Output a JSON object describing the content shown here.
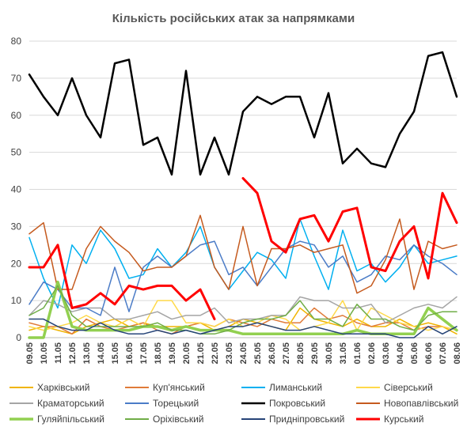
{
  "chart_data": {
    "type": "line",
    "title": "Кількість російських атак за напрямками",
    "xlabel": "",
    "ylabel": "",
    "ylim": [
      0,
      80
    ],
    "yticks": [
      0,
      10,
      20,
      30,
      40,
      50,
      60,
      70,
      80
    ],
    "grid": true,
    "legend_position": "bottom",
    "x": [
      "09.05",
      "10.05",
      "11.05",
      "12.05",
      "13.05",
      "14.05",
      "15.05",
      "16.05",
      "17.05",
      "18.05",
      "19.05",
      "20.05",
      "21.05",
      "22.05",
      "23.05",
      "24.05",
      "25.05",
      "26.05",
      "27.05",
      "28.05",
      "29.05",
      "30.05",
      "31.05",
      "01.06",
      "02.06",
      "03.06",
      "04.06",
      "05.06",
      "06.06",
      "07.06",
      "08.06"
    ],
    "series": [
      {
        "name": "Харківський",
        "color": "#f0b400",
        "width": 1.5,
        "values": [
          2,
          3,
          2,
          1,
          3,
          4,
          5,
          3,
          4,
          3,
          3,
          3,
          4,
          2,
          3,
          5,
          4,
          3,
          2,
          8,
          5,
          4,
          3,
          5,
          3,
          3,
          5,
          3,
          4,
          3,
          1
        ]
      },
      {
        "name": "Куп'янський",
        "color": "#e07b39",
        "width": 1.5,
        "values": [
          4,
          3,
          3,
          1,
          5,
          3,
          2,
          3,
          4,
          2,
          1,
          3,
          4,
          3,
          5,
          4,
          3,
          5,
          4,
          4,
          8,
          5,
          6,
          4,
          3,
          4,
          4,
          2,
          3,
          3,
          2
        ]
      },
      {
        "name": "Лиманський",
        "color": "#00b0f0",
        "width": 1.5,
        "values": [
          27,
          16,
          8,
          25,
          20,
          29,
          24,
          16,
          17,
          24,
          19,
          23,
          30,
          19,
          13,
          18,
          23,
          21,
          16,
          32,
          22,
          13,
          29,
          18,
          20,
          15,
          19,
          25,
          20,
          21,
          22
        ]
      },
      {
        "name": "Сіверський",
        "color": "#ffd94a",
        "width": 1.5,
        "values": [
          3,
          2,
          3,
          4,
          6,
          4,
          3,
          5,
          3,
          10,
          10,
          4,
          4,
          3,
          5,
          3,
          4,
          6,
          5,
          2,
          3,
          4,
          10,
          2,
          8,
          6,
          4,
          3,
          2,
          3,
          2
        ]
      },
      {
        "name": "Краматорський",
        "color": "#a5a5a5",
        "width": 1.5,
        "values": [
          6,
          10,
          9,
          7,
          8,
          8,
          5,
          5,
          6,
          7,
          5,
          6,
          6,
          8,
          4,
          5,
          5,
          6,
          6,
          11,
          10,
          10,
          8,
          8,
          9,
          4,
          6,
          8,
          9,
          8,
          11
        ]
      },
      {
        "name": "Торецький",
        "color": "#4b7cc7",
        "width": 1.5,
        "values": [
          9,
          15,
          13,
          8,
          8,
          6,
          19,
          7,
          19,
          22,
          19,
          22,
          25,
          26,
          17,
          19,
          14,
          19,
          24,
          26,
          25,
          19,
          22,
          15,
          17,
          22,
          21,
          25,
          22,
          20,
          17
        ]
      },
      {
        "name": "Покровський",
        "color": "#000000",
        "width": 2.5,
        "values": [
          71,
          65,
          60,
          70,
          60,
          54,
          74,
          75,
          52,
          54,
          44,
          72,
          44,
          54,
          44,
          61,
          65,
          63,
          65,
          65,
          54,
          66,
          47,
          51,
          47,
          46,
          55,
          61,
          76,
          77,
          65
        ]
      },
      {
        "name": "Новопавлівський",
        "color": "#c55a1e",
        "width": 1.5,
        "values": [
          28,
          31,
          13,
          13,
          24,
          30,
          26,
          23,
          18,
          19,
          19,
          22,
          33,
          19,
          13,
          30,
          14,
          24,
          24,
          25,
          23,
          24,
          25,
          12,
          14,
          21,
          32,
          13,
          26,
          24,
          25
        ]
      },
      {
        "name": "Гуляйпільський",
        "color": "#92d050",
        "width": 3.5,
        "values": [
          0,
          0,
          15,
          3,
          2,
          2,
          2,
          2,
          3,
          3,
          2,
          3,
          2,
          2,
          2,
          1,
          1,
          1,
          1,
          1,
          1,
          1,
          1,
          2,
          1,
          1,
          1,
          1,
          8,
          5,
          2
        ]
      },
      {
        "name": "Оріхівський",
        "color": "#70ad47",
        "width": 1.5,
        "values": [
          6,
          8,
          14,
          6,
          3,
          3,
          3,
          3,
          3,
          4,
          2,
          2,
          1,
          1,
          2,
          4,
          5,
          5,
          6,
          10,
          5,
          5,
          3,
          9,
          5,
          5,
          3,
          2,
          6,
          7,
          7
        ]
      },
      {
        "name": "Придніпровський",
        "color": "#264478",
        "width": 1.5,
        "values": [
          5,
          5,
          3,
          2,
          2,
          4,
          2,
          1,
          1,
          2,
          1,
          2,
          1,
          2,
          3,
          3,
          4,
          3,
          2,
          2,
          3,
          2,
          1,
          1,
          1,
          1,
          0,
          0,
          3,
          1,
          3
        ]
      },
      {
        "name": "Курський",
        "color": "#ff0000",
        "width": 3,
        "values": [
          19,
          19,
          25,
          8,
          9,
          12,
          9,
          14,
          13,
          14,
          14,
          10,
          13,
          5,
          null,
          43,
          39,
          26,
          23,
          32,
          33,
          26,
          34,
          35,
          19,
          18,
          26,
          30,
          16,
          39,
          31
        ]
      }
    ]
  }
}
